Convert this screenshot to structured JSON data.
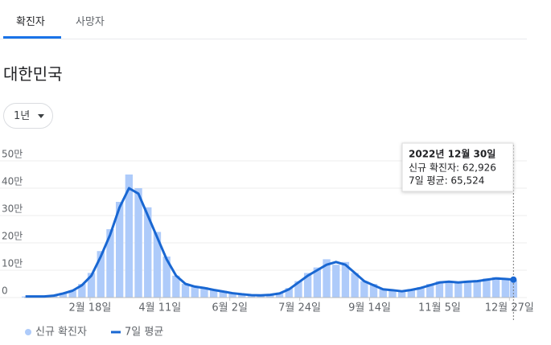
{
  "tabs": [
    "확진자",
    "사망자"
  ],
  "region": "대한민국",
  "range": "1년",
  "chart_data": {
    "type": "bar-line",
    "x": [
      0,
      7,
      14,
      21,
      28,
      35,
      42,
      49,
      56,
      63,
      70,
      77,
      84,
      91,
      98,
      105,
      112,
      119,
      126,
      133,
      140,
      147,
      154,
      161,
      168,
      175,
      182,
      189,
      196,
      203,
      210,
      217,
      224,
      231,
      238,
      245,
      252,
      259,
      266,
      273,
      280,
      287,
      294,
      301,
      308,
      315,
      322,
      329,
      336,
      343,
      350,
      357,
      363
    ],
    "xlim": [
      -1,
      364
    ],
    "xticks": [
      {
        "value": 48,
        "label": "2월 18일"
      },
      {
        "value": 100,
        "label": "4월 11일"
      },
      {
        "value": 152,
        "label": "6월 2일"
      },
      {
        "value": 204,
        "label": "7월 24일"
      },
      {
        "value": 256,
        "label": "9월 14일"
      },
      {
        "value": 308,
        "label": "11월 5일"
      },
      {
        "value": 360,
        "label": "12월 27일"
      }
    ],
    "ylim": [
      0,
      50
    ],
    "yticks": [
      {
        "value": 0,
        "label": "0"
      },
      {
        "value": 10,
        "label": "10만"
      },
      {
        "value": 20,
        "label": "20만"
      },
      {
        "value": 30,
        "label": "30만"
      },
      {
        "value": 40,
        "label": "40만"
      },
      {
        "value": 50,
        "label": "50만"
      }
    ],
    "series": [
      {
        "name": "신규 확진자",
        "color": "#aecbfa",
        "values": [
          0.4,
          0.4,
          0.5,
          0.8,
          1.7,
          2.7,
          5,
          9,
          17,
          25,
          35,
          45,
          40,
          33,
          24,
          15,
          8,
          5,
          4,
          3.8,
          3,
          2.5,
          1.6,
          1.3,
          1,
          0.9,
          1.2,
          1.8,
          3.5,
          6,
          9,
          11,
          14,
          12,
          13,
          9,
          6,
          5,
          3,
          2.8,
          2.4,
          3,
          3.8,
          5,
          6,
          6,
          5.8,
          6.2,
          6.4,
          7,
          7.5,
          7,
          6.29
        ]
      },
      {
        "name": "7일 평균",
        "color": "#1967d2",
        "values": [
          0.4,
          0.4,
          0.4,
          0.7,
          1.5,
          2.5,
          4.5,
          8,
          15,
          23,
          33,
          40,
          38,
          30,
          22,
          14,
          8,
          5,
          4,
          3.5,
          2.8,
          2.2,
          1.6,
          1.2,
          0.9,
          0.8,
          1,
          1.5,
          3,
          5.5,
          8,
          10,
          12,
          13,
          12,
          9,
          6,
          4.5,
          3,
          2.7,
          2.3,
          2.8,
          3.5,
          4.5,
          5.5,
          5.8,
          5.5,
          5.8,
          6,
          6.5,
          7,
          6.8,
          6.55
        ]
      }
    ],
    "tooltip": {
      "date": "2022년 12월 30일",
      "lines": [
        "신규 확진자: 62,926",
        "7일 평균: 65,524"
      ]
    }
  }
}
